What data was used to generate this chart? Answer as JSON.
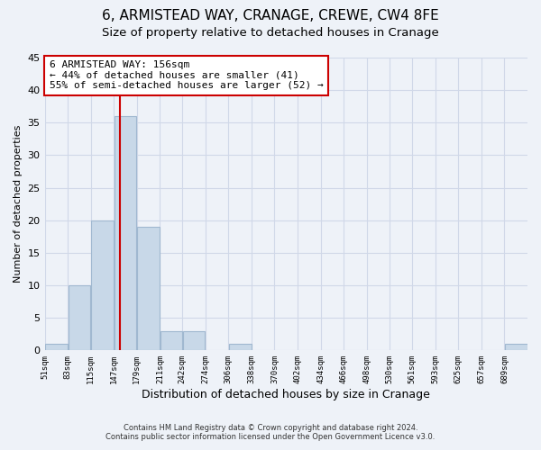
{
  "title": "6, ARMISTEAD WAY, CRANAGE, CREWE, CW4 8FE",
  "subtitle": "Size of property relative to detached houses in Cranage",
  "xlabel": "Distribution of detached houses by size in Cranage",
  "ylabel": "Number of detached properties",
  "bar_values": [
    1,
    10,
    20,
    36,
    19,
    3,
    3,
    0,
    1,
    0,
    0,
    0,
    0,
    0,
    0,
    0,
    0,
    0,
    0,
    0,
    1
  ],
  "bin_edges": [
    51,
    83,
    115,
    147,
    179,
    211,
    242,
    274,
    306,
    338,
    370,
    402,
    434,
    466,
    498,
    530,
    561,
    593,
    625,
    657,
    689,
    721
  ],
  "tick_labels": [
    "51sqm",
    "83sqm",
    "115sqm",
    "147sqm",
    "179sqm",
    "211sqm",
    "242sqm",
    "274sqm",
    "306sqm",
    "338sqm",
    "370sqm",
    "402sqm",
    "434sqm",
    "466sqm",
    "498sqm",
    "530sqm",
    "561sqm",
    "593sqm",
    "625sqm",
    "657sqm",
    "689sqm"
  ],
  "bar_color": "#c8d8e8",
  "bar_edgecolor": "#a0b8d0",
  "vline_x": 156,
  "vline_color": "#cc0000",
  "annotation_line1": "6 ARMISTEAD WAY: 156sqm",
  "annotation_line2": "← 44% of detached houses are smaller (41)",
  "annotation_line3": "55% of semi-detached houses are larger (52) →",
  "annotation_box_color": "#ffffff",
  "annotation_box_edgecolor": "#cc0000",
  "ylim": [
    0,
    45
  ],
  "yticks": [
    0,
    5,
    10,
    15,
    20,
    25,
    30,
    35,
    40,
    45
  ],
  "grid_color": "#d0d8e8",
  "background_color": "#eef2f8",
  "footer_line1": "Contains HM Land Registry data © Crown copyright and database right 2024.",
  "footer_line2": "Contains public sector information licensed under the Open Government Licence v3.0.",
  "title_fontsize": 11,
  "subtitle_fontsize": 9.5,
  "annotation_fontsize": 8
}
